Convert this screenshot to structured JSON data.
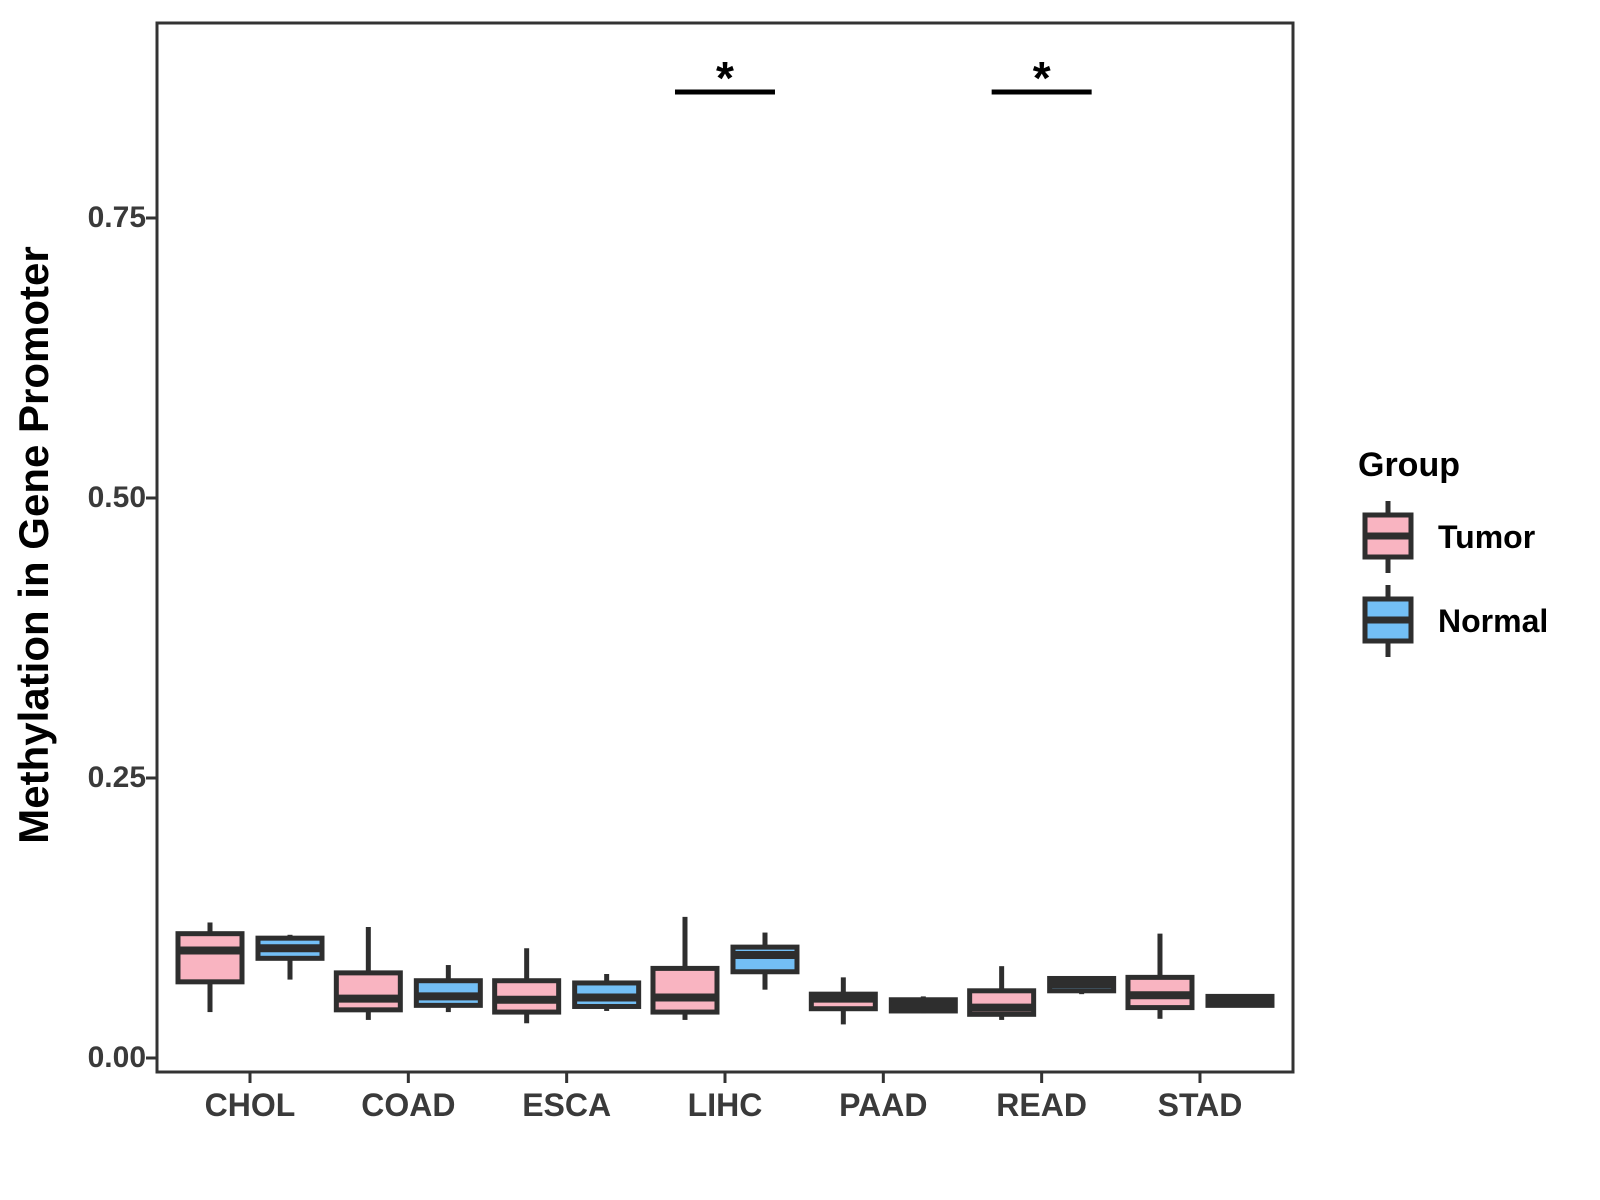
{
  "figure": {
    "ylabel": "Methylation in Gene Promoter",
    "legend": {
      "title": "Group",
      "entries": [
        {
          "label": "Tumor"
        },
        {
          "label": "Normal"
        }
      ]
    }
  },
  "chart_data": {
    "type": "boxplot",
    "title": "",
    "xlabel": "",
    "ylabel": "Methylation in Gene Promoter",
    "categories": [
      "CHOL",
      "COAD",
      "ESCA",
      "LIHC",
      "PAAD",
      "READ",
      "STAD"
    ],
    "groups": [
      "Tumor",
      "Normal"
    ],
    "colors": {
      "Tumor": "#F9B4C1",
      "Normal": "#73BFF5",
      "stroke": "#2E2E2E",
      "axis": "#333333",
      "significance": "#000000"
    },
    "yticks": [
      {
        "label": "0.00",
        "value": 0.0
      },
      {
        "label": "0.25",
        "value": 0.25
      },
      {
        "label": "0.50",
        "value": 0.5
      },
      {
        "label": "0.75",
        "value": 0.75
      }
    ],
    "ylim": [
      -0.013,
      0.93
    ],
    "grid": false,
    "legend_position": "right",
    "series": [
      {
        "name": "Tumor",
        "boxes": [
          {
            "category": "CHOL",
            "lo": 0.041,
            "q1": 0.068,
            "med": 0.096,
            "q3": 0.111,
            "hi": 0.121
          },
          {
            "category": "COAD",
            "lo": 0.034,
            "q1": 0.043,
            "med": 0.053,
            "q3": 0.076,
            "hi": 0.117
          },
          {
            "category": "ESCA",
            "lo": 0.031,
            "q1": 0.041,
            "med": 0.052,
            "q3": 0.069,
            "hi": 0.098
          },
          {
            "category": "LIHC",
            "lo": 0.034,
            "q1": 0.041,
            "med": 0.054,
            "q3": 0.08,
            "hi": 0.126
          },
          {
            "category": "PAAD",
            "lo": 0.03,
            "q1": 0.044,
            "med": 0.053,
            "q3": 0.057,
            "hi": 0.072
          },
          {
            "category": "READ",
            "lo": 0.034,
            "q1": 0.039,
            "med": 0.045,
            "q3": 0.06,
            "hi": 0.082
          },
          {
            "category": "STAD",
            "lo": 0.035,
            "q1": 0.045,
            "med": 0.056,
            "q3": 0.072,
            "hi": 0.111
          }
        ]
      },
      {
        "name": "Normal",
        "boxes": [
          {
            "category": "CHOL",
            "lo": 0.07,
            "q1": 0.089,
            "med": 0.098,
            "q3": 0.107,
            "hi": 0.11
          },
          {
            "category": "COAD",
            "lo": 0.041,
            "q1": 0.047,
            "med": 0.055,
            "q3": 0.069,
            "hi": 0.083
          },
          {
            "category": "ESCA",
            "lo": 0.042,
            "q1": 0.046,
            "med": 0.054,
            "q3": 0.067,
            "hi": 0.075
          },
          {
            "category": "LIHC",
            "lo": 0.061,
            "q1": 0.077,
            "med": 0.092,
            "q3": 0.099,
            "hi": 0.112
          },
          {
            "category": "PAAD",
            "lo": 0.04,
            "q1": 0.042,
            "med": 0.047,
            "q3": 0.052,
            "hi": 0.055
          },
          {
            "category": "READ",
            "lo": 0.057,
            "q1": 0.06,
            "med": 0.066,
            "q3": 0.071,
            "hi": 0.073
          },
          {
            "category": "STAD",
            "lo": 0.046,
            "q1": 0.047,
            "med": 0.051,
            "q3": 0.055,
            "hi": 0.057
          }
        ]
      }
    ],
    "significance": [
      {
        "category": "LIHC",
        "label": "*"
      },
      {
        "category": "READ",
        "label": "*"
      }
    ]
  }
}
